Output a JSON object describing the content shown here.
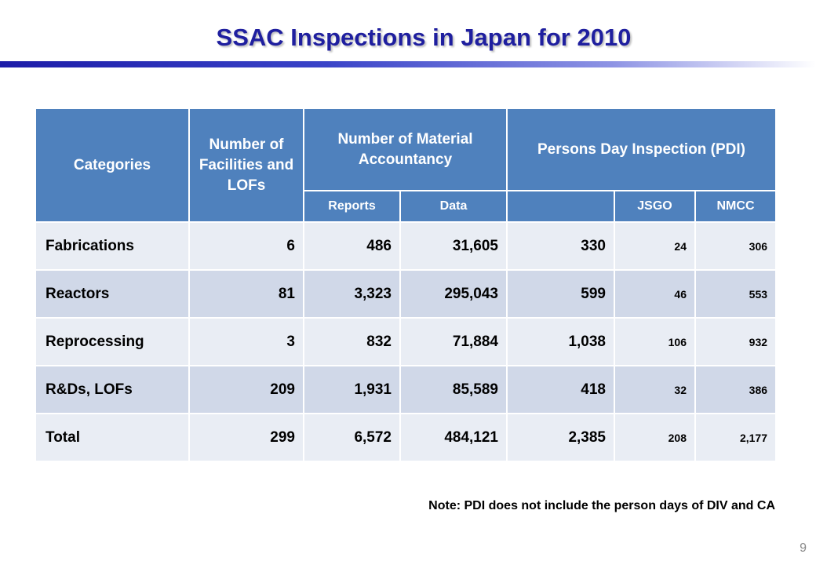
{
  "title": "SSAC Inspections in Japan for 2010",
  "table": {
    "headers": {
      "categories": "Categories",
      "facilities": "Number of Facilities and LOFs",
      "material_accountancy": "Number of Material Accountancy",
      "reports": "Reports",
      "data": "Data",
      "pdi": "Persons Day Inspection (PDI)",
      "jsgo": "JSGO",
      "nmcc": "NMCC"
    },
    "rows": [
      {
        "category": "Fabrications",
        "facilities": "6",
        "reports": "486",
        "data": "31,605",
        "pdi": "330",
        "jsgo": "24",
        "nmcc": "306"
      },
      {
        "category": "Reactors",
        "facilities": "81",
        "reports": "3,323",
        "data": "295,043",
        "pdi": "599",
        "jsgo": "46",
        "nmcc": "553"
      },
      {
        "category": "Reprocessing",
        "facilities": "3",
        "reports": "832",
        "data": "71,884",
        "pdi": "1,038",
        "jsgo": "106",
        "nmcc": "932"
      },
      {
        "category": "R&Ds, LOFs",
        "facilities": "209",
        "reports": "1,931",
        "data": "85,589",
        "pdi": "418",
        "jsgo": "32",
        "nmcc": "386"
      },
      {
        "category": "Total",
        "facilities": "299",
        "reports": "6,572",
        "data": "484,121",
        "pdi": "2,385",
        "jsgo": "208",
        "nmcc": "2,177"
      }
    ]
  },
  "note": "Note: PDI does not include the person days of DIV and CA",
  "page_number": "9"
}
